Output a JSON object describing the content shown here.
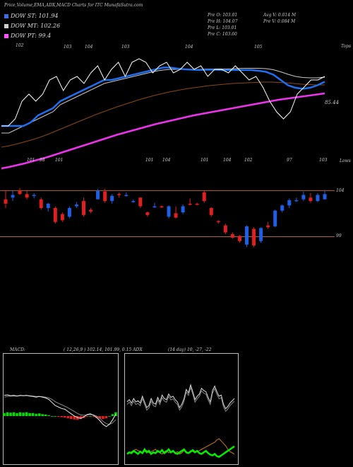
{
  "header": {
    "title": "Price,Volume,EMA,ADX,MACD Charts for ITC MunafaSutra.com",
    "legend": [
      {
        "label": "DOW ST: 101.94",
        "color": "#3c6ee0"
      },
      {
        "label": "DOW MT: 102.26",
        "color": "#cfcfcf"
      },
      {
        "label": "DOW PT: 99.4",
        "color": "#ff55ff"
      }
    ],
    "ohlc": {
      "open": "Pre   O: 103.01",
      "high": "Pre   H: 104.07",
      "low": "Pre   L: 103.01",
      "close": "Pre   C: 103.60",
      "avg_vol": "Avg V: 0.014   M",
      "pre_vol": "Pre   V: 0.084   M"
    }
  },
  "labels": {
    "tops": "Tops",
    "lows": "Lows",
    "ema_value": "85.44",
    "level_104": "104",
    "level_99": "99",
    "macd_label": "MACD:",
    "macd_values": "( 12,26,9 ) 102.14,  101.99,  0.15 ADX",
    "adx_values": "(14  day) 10,  -27,  -22"
  },
  "chart_data": {
    "type": "line",
    "colors": {
      "up": "#1f5fe6",
      "down": "#e02020",
      "price_line": "#ffffff",
      "ema_short": "#1f6ff0",
      "ema_mid": "#c8c8c8",
      "ema_long": "#8a4a12",
      "ema_dow": "#ee33ee",
      "macd_hist": "#00dd00",
      "macd_neg": "#e02020",
      "adx_pos": "#00ee00",
      "adx_neg": "#cc7722"
    },
    "top_labels": [
      "102",
      "103",
      "104",
      "103",
      "104",
      "105"
    ],
    "low_labels": [
      "101",
      "98",
      "101",
      "101",
      "104",
      "101",
      "104",
      "102",
      "97",
      "103"
    ],
    "price_line": [
      86,
      86,
      88,
      93,
      95,
      93,
      95,
      99,
      100,
      96,
      99,
      100,
      98,
      101,
      103,
      99,
      102,
      104,
      100,
      104,
      105,
      104,
      101,
      103,
      104,
      101,
      102,
      104,
      102,
      103,
      100,
      102,
      102,
      101,
      103,
      101,
      99,
      100,
      97,
      93,
      90,
      88,
      90,
      95,
      97,
      99,
      99,
      100
    ],
    "ema_short": [
      86,
      86,
      86,
      86,
      87,
      89,
      90,
      91,
      93,
      94,
      95,
      96,
      97,
      98,
      99,
      99,
      99.5,
      100,
      100.5,
      101,
      101.5,
      102,
      102.5,
      102.5,
      102.2,
      102,
      101.9,
      101.8,
      101.9,
      101.9,
      101.8,
      101.8,
      101.8,
      101.8,
      101.8,
      101.6,
      101.3,
      100.5,
      99,
      97.5,
      96.8,
      96.5,
      96.8,
      97.5,
      98.5
    ],
    "ema_mid": [
      84,
      84,
      85,
      86,
      87,
      88,
      89,
      90,
      92,
      93,
      94,
      95,
      96,
      97,
      98,
      98.5,
      99,
      99.5,
      100,
      100.5,
      101,
      101.5,
      101.8,
      102,
      102,
      102,
      102,
      102,
      102.1,
      102.1,
      102.1,
      102.1,
      102.2,
      102.3,
      102.3,
      102.3,
      102.2,
      101.9,
      101.3,
      100.6,
      100,
      99.7,
      99.6,
      99.6,
      99.8
    ],
    "ema_long": [
      80,
      80.4,
      80.9,
      81.5,
      82.1,
      82.8,
      83.6,
      84.5,
      85.4,
      86.3,
      87.2,
      88.1,
      89,
      89.8,
      90.6,
      91.4,
      92.1,
      92.8,
      93.5,
      94.1,
      94.7,
      95.2,
      95.7,
      96.1,
      96.5,
      96.8,
      97.1,
      97.4,
      97.6,
      97.8,
      98,
      98.1,
      98.2,
      98.3,
      98.4,
      98.4,
      98.3,
      98.2,
      98,
      97.8,
      97.7,
      97.6,
      97.6
    ],
    "ema_dow": [
      74,
      74.4,
      74.9,
      75.4,
      76,
      76.6,
      77.2,
      77.9,
      78.6,
      79.3,
      80,
      80.7,
      81.4,
      82.1,
      82.8,
      83.5,
      84.1,
      84.7,
      85.3,
      85.9,
      86.5,
      87,
      87.5,
      88,
      88.5,
      89,
      89.4,
      89.8,
      90.2,
      90.6,
      91,
      91.4,
      91.8,
      92.2,
      92.6,
      93,
      93.4,
      93.7,
      94,
      94.3,
      94.6,
      94.9,
      95.2
    ],
    "candles": [
      [
        103,
        104,
        102,
        102.5
      ],
      [
        103.2,
        104,
        102.8,
        103.5
      ],
      [
        104,
        104.3,
        103.5,
        103.6
      ],
      [
        103.6,
        104,
        103,
        103.2
      ],
      [
        103.5,
        103.7,
        103.1,
        103.5
      ],
      [
        103,
        103.2,
        101.8,
        102
      ],
      [
        102,
        102.6,
        101.6,
        102.5
      ],
      [
        102,
        102.2,
        100.2,
        100.4
      ],
      [
        101.3,
        101.5,
        100.4,
        100.6
      ],
      [
        101,
        102.2,
        100.8,
        102
      ],
      [
        102.2,
        102.7,
        102,
        102.4
      ],
      [
        102.8,
        103.2,
        101,
        101.2
      ],
      [
        101.8,
        102,
        101.4,
        101.6
      ],
      [
        103,
        104.2,
        103,
        104
      ],
      [
        103.9,
        104.2,
        102.6,
        102.8
      ],
      [
        102.8,
        103.6,
        102.5,
        103.4
      ],
      [
        103.6,
        103.8,
        103.2,
        103.5
      ],
      [
        103.5,
        103.8,
        103.3,
        103.5
      ],
      [
        102.8,
        103,
        102.6,
        102.8
      ],
      [
        103.2,
        103.2,
        102,
        102.2
      ],
      [
        101.5,
        101.6,
        101,
        101.2
      ],
      [
        102.2,
        102.6,
        102,
        102.2
      ],
      [
        102.2,
        102.3,
        102,
        102.1
      ],
      [
        101,
        102.3,
        100.8,
        102.2
      ],
      [
        101.4,
        102.2,
        100.8,
        100.9
      ],
      [
        101.5,
        102.4,
        101.3,
        102.2
      ],
      [
        102.5,
        103.1,
        102.3,
        102.4
      ],
      [
        102.5,
        102.6,
        102.3,
        102.4
      ],
      [
        103.8,
        104,
        102.6,
        102.8
      ],
      [
        102,
        102.1,
        101,
        101.2
      ],
      [
        100.5,
        100.6,
        100.2,
        100.4
      ],
      [
        100,
        100.2,
        99,
        99.2
      ],
      [
        99,
        99.2,
        98.5,
        98.6
      ],
      [
        98.8,
        98.9,
        98,
        98.2
      ],
      [
        97.8,
        100,
        97.5,
        99.9
      ],
      [
        99.6,
        99.8,
        97.5,
        97.7
      ],
      [
        98.2,
        99.8,
        98,
        99.7
      ],
      [
        100,
        100.4,
        99.6,
        99.8
      ],
      [
        99.9,
        101.8,
        99.8,
        101.7
      ],
      [
        101.7,
        102.4,
        101.5,
        102.3
      ],
      [
        102.3,
        103.1,
        102,
        102.9
      ],
      [
        102.9,
        103.2,
        102.7,
        102.9
      ],
      [
        103,
        103.9,
        102.8,
        103.5
      ],
      [
        103.2,
        103.7,
        102.6,
        102.8
      ],
      [
        102.8,
        103.7,
        102.7,
        103.5
      ],
      [
        103,
        104.1,
        103,
        103.6
      ]
    ],
    "macd_line": [
      0.55,
      0.56,
      0.54,
      0.55,
      0.53,
      0.55,
      0.54,
      0.55,
      0.53,
      0.52,
      0.5,
      0.52,
      0.5,
      0.48,
      0.44,
      0.36,
      0.28,
      0.24,
      0.2,
      0.18,
      0.12,
      0.06,
      0.0,
      -0.04,
      -0.06,
      -0.02,
      0.04,
      0.06,
      0.02,
      -0.04,
      -0.12,
      -0.22,
      -0.28,
      -0.22,
      -0.1,
      0.05
    ],
    "signal_line": [
      0.5,
      0.52,
      0.53,
      0.53,
      0.53,
      0.54,
      0.54,
      0.54,
      0.54,
      0.53,
      0.52,
      0.52,
      0.51,
      0.5,
      0.48,
      0.44,
      0.38,
      0.34,
      0.3,
      0.26,
      0.22,
      0.17,
      0.12,
      0.07,
      0.03,
      0.02,
      0.03,
      0.04,
      0.03,
      0.0,
      -0.06,
      -0.14,
      -0.2,
      -0.22,
      -0.18,
      -0.1
    ],
    "macd_hist": [
      0.08,
      0.1,
      0.09,
      0.1,
      0.08,
      0.1,
      0.09,
      0.1,
      0.08,
      0.08,
      0.06,
      0.07,
      0.05,
      0.04,
      0.02,
      0.0,
      0.0,
      -0.02,
      -0.03,
      -0.04,
      -0.06,
      -0.08,
      -0.09,
      -0.1,
      -0.08,
      -0.05,
      -0.02,
      0.0,
      -0.02,
      -0.05,
      -0.07,
      -0.08,
      -0.06,
      0.0,
      0.05,
      0.1
    ],
    "adx_line": [
      40,
      44,
      38,
      46,
      40,
      42,
      38,
      50,
      40,
      30,
      34,
      46,
      38,
      36,
      48,
      40,
      52,
      46,
      44,
      54,
      48,
      50,
      44,
      40,
      30,
      36,
      46,
      62,
      56,
      70,
      58,
      44,
      50,
      54,
      64,
      60,
      58,
      48,
      40,
      60,
      68,
      58,
      50,
      52,
      36,
      28,
      32,
      38,
      42,
      46
    ],
    "adx_line2": [
      38,
      42,
      36,
      44,
      38,
      40,
      36,
      48,
      38,
      28,
      32,
      44,
      36,
      34,
      46,
      38,
      50,
      44,
      42,
      52,
      46,
      48,
      42,
      38,
      28,
      34,
      44,
      60,
      54,
      68,
      56,
      42,
      48,
      52,
      62,
      58,
      56,
      46,
      38,
      58,
      66,
      56,
      48,
      50,
      34,
      26,
      30,
      36,
      40,
      44
    ],
    "di_plus": [
      8,
      10,
      9,
      12,
      10,
      8,
      11,
      9,
      14,
      10,
      12,
      8,
      10,
      9,
      12,
      10,
      13,
      9,
      11,
      14,
      10,
      12,
      9,
      8,
      10,
      12,
      14,
      10,
      9,
      11,
      13,
      10,
      12,
      9,
      8,
      10,
      12,
      9,
      7,
      6,
      8,
      5,
      4,
      6,
      8,
      10,
      12,
      14,
      16,
      18
    ],
    "di_minus": [
      10,
      12,
      14,
      16,
      18,
      16,
      14,
      12,
      14,
      16,
      12,
      14,
      16,
      18,
      14,
      12,
      10,
      14,
      16,
      12,
      14,
      16,
      12,
      14,
      10,
      12,
      16,
      14,
      12,
      16,
      14,
      12,
      14,
      16,
      18,
      20,
      22,
      24,
      26,
      28,
      30,
      34,
      36,
      32,
      28,
      24,
      18,
      14,
      12,
      10
    ]
  }
}
